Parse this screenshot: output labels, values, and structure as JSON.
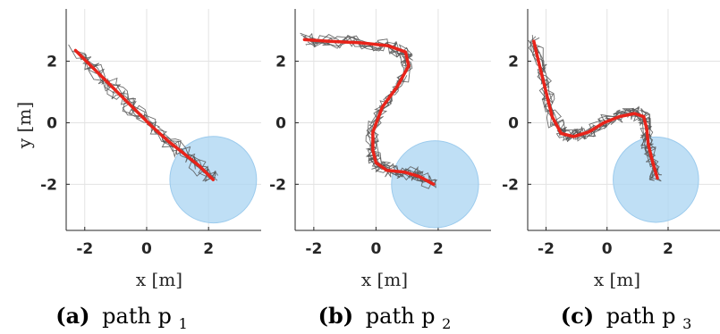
{
  "chart_data": [
    {
      "type": "line",
      "caption_label": "(a)",
      "caption_text": "path p",
      "caption_sub": "1",
      "xlabel": "x [m]",
      "ylabel": "y [m]",
      "xlim": [
        -2.6,
        3.7
      ],
      "ylim": [
        -3.5,
        3.7
      ],
      "xticks": [
        -2,
        0,
        2
      ],
      "yticks": [
        -2,
        0,
        2
      ],
      "grid": true,
      "target": {
        "x": 2.15,
        "y": -1.85,
        "r": 1.4,
        "color": "#aad4f2"
      },
      "path_color": "#e8231a",
      "trace_color": "#555555",
      "path": {
        "x": [
          -2.3,
          -1.8,
          -1.3,
          -0.8,
          -0.3,
          0.2,
          0.7,
          1.2,
          1.7,
          2.15
        ],
        "y": [
          2.35,
          1.85,
          1.35,
          0.85,
          0.35,
          -0.15,
          -0.6,
          -1.0,
          -1.4,
          -1.85
        ]
      }
    },
    {
      "type": "line",
      "caption_label": "(b)",
      "caption_text": "path p",
      "caption_sub": "2",
      "xlabel": "x [m]",
      "ylabel": "",
      "xlim": [
        -2.6,
        3.7
      ],
      "ylim": [
        -3.5,
        3.7
      ],
      "xticks": [
        -2,
        0,
        2
      ],
      "yticks": [
        -2,
        0,
        2
      ],
      "grid": true,
      "target": {
        "x": 1.9,
        "y": -2.0,
        "r": 1.4,
        "color": "#aad4f2"
      },
      "path_color": "#e8231a",
      "trace_color": "#555555",
      "path": {
        "x": [
          -2.3,
          -1.5,
          -0.5,
          0.4,
          0.95,
          1.05,
          0.7,
          0.2,
          -0.1,
          -0.1,
          0.0,
          0.35,
          0.9,
          1.4,
          1.85
        ],
        "y": [
          2.7,
          2.65,
          2.6,
          2.5,
          2.3,
          1.85,
          1.2,
          0.5,
          -0.3,
          -0.9,
          -1.3,
          -1.55,
          -1.6,
          -1.75,
          -2.0
        ]
      }
    },
    {
      "type": "line",
      "caption_label": "(c)",
      "caption_text": "path p",
      "caption_sub": "3",
      "xlabel": "x [m]",
      "ylabel": "",
      "xlim": [
        -2.6,
        3.7
      ],
      "ylim": [
        -3.5,
        3.7
      ],
      "xticks": [
        -2,
        0,
        2
      ],
      "yticks": [
        -2,
        0,
        2
      ],
      "grid": true,
      "target": {
        "x": 1.6,
        "y": -1.85,
        "r": 1.4,
        "color": "#aad4f2"
      },
      "path_color": "#e8231a",
      "trace_color": "#555555",
      "path": {
        "x": [
          -2.4,
          -2.2,
          -2.0,
          -1.8,
          -1.5,
          -1.1,
          -0.6,
          -0.1,
          0.4,
          0.9,
          1.2,
          1.3,
          1.35,
          1.5,
          1.65
        ],
        "y": [
          2.65,
          1.8,
          1.0,
          0.2,
          -0.35,
          -0.45,
          -0.3,
          0.0,
          0.2,
          0.3,
          0.2,
          -0.2,
          -0.7,
          -1.3,
          -1.8
        ]
      }
    }
  ]
}
